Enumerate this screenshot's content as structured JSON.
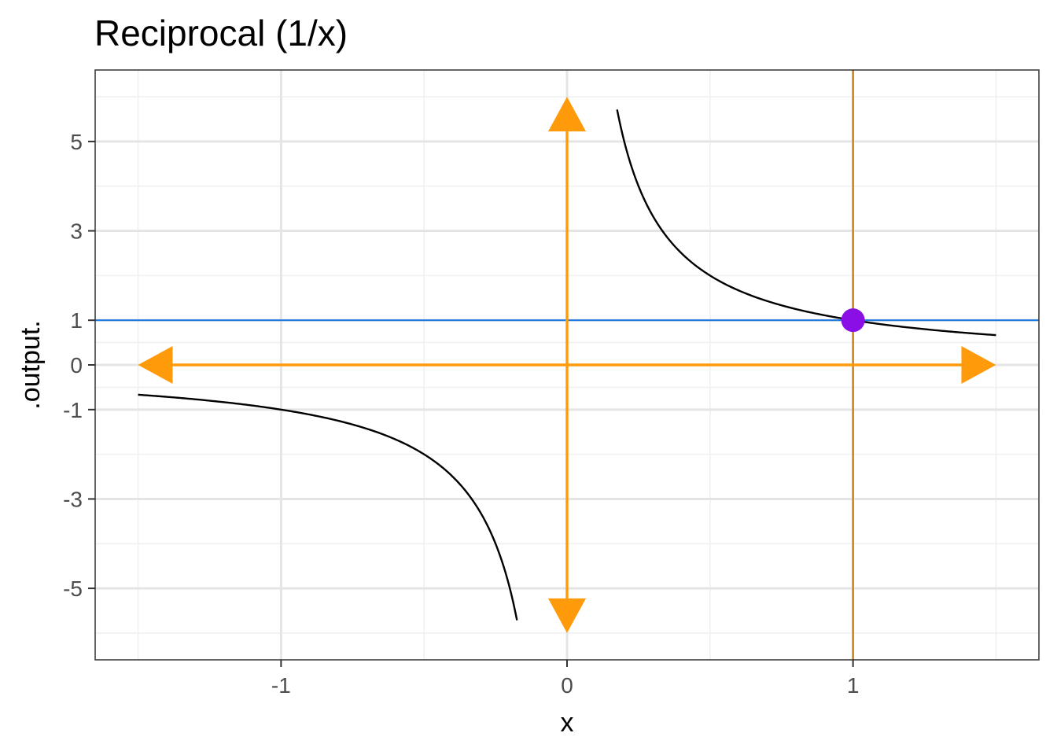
{
  "chart_data": {
    "type": "line",
    "title": "Reciprocal (1/x)",
    "xlabel": "x",
    "ylabel": ".output.",
    "xlim": [
      -1.65,
      1.65
    ],
    "ylim": [
      -6.6,
      6.6
    ],
    "x_ticks": [
      -1,
      0,
      1
    ],
    "x_tick_labels": [
      "-1",
      "0",
      "1"
    ],
    "y_ticks": [
      -5,
      -3,
      -1,
      0,
      1,
      3,
      5
    ],
    "y_tick_labels": [
      "-5",
      "-3",
      "-1",
      "0",
      "1",
      "3",
      "5"
    ],
    "grid": true,
    "function": "1/x",
    "curve_domains": [
      [
        -1.5,
        -0.175
      ],
      [
        0.175,
        1.5
      ]
    ],
    "reference_lines": {
      "horizontal": {
        "y": 1,
        "color": "#1f77e0"
      },
      "vertical": {
        "x": 1,
        "color": "#c07a10"
      }
    },
    "axis_arrows": {
      "x_range": [
        -1.5,
        1.5
      ],
      "y_range": [
        -6,
        6
      ],
      "color": "#ff9a0a"
    },
    "highlight_point": {
      "x": 1,
      "y": 1,
      "color": "#8a0ee6"
    },
    "colors": {
      "curve": "#000000",
      "grid_major": "#e5e5e5",
      "grid_minor": "#f0f0f0"
    }
  }
}
